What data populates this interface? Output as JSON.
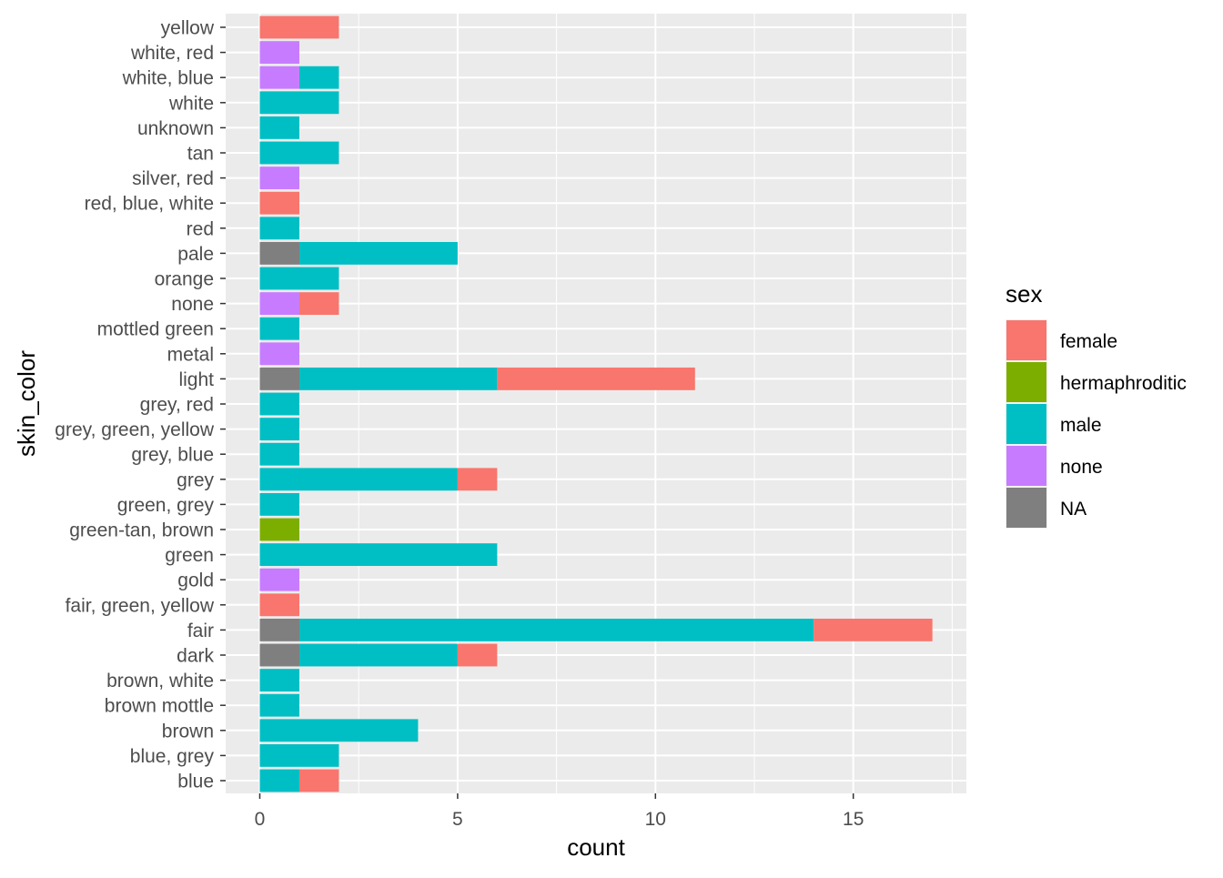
{
  "chart_data": {
    "type": "bar",
    "orientation": "horizontal",
    "stacked": true,
    "xlabel": "count",
    "ylabel": "skin_color",
    "xlim": [
      0,
      17.5
    ],
    "x_ticks": [
      0,
      5,
      10,
      15
    ],
    "grid": true,
    "legend": {
      "title": "sex",
      "position": "right",
      "entries": [
        "female",
        "hermaphroditic",
        "male",
        "none",
        "NA"
      ]
    },
    "colors": {
      "female": "#F8766D",
      "hermaphroditic": "#7CAE00",
      "male": "#00BFC4",
      "none": "#C77CFF",
      "NA": "#7F7F7F",
      "panel": "#EBEBEB",
      "grid": "#FFFFFF"
    },
    "stack_order": [
      "NA",
      "none",
      "male",
      "hermaphroditic",
      "female"
    ],
    "categories": [
      "blue",
      "blue, grey",
      "brown",
      "brown mottle",
      "brown, white",
      "dark",
      "fair",
      "fair, green, yellow",
      "gold",
      "green",
      "green-tan, brown",
      "green, grey",
      "grey",
      "grey, blue",
      "grey, green, yellow",
      "grey, red",
      "light",
      "metal",
      "mottled green",
      "none",
      "orange",
      "pale",
      "red",
      "red, blue, white",
      "silver, red",
      "tan",
      "unknown",
      "white",
      "white, blue",
      "white, red",
      "yellow"
    ],
    "series": [
      {
        "name": "female",
        "values": [
          1,
          0,
          0,
          0,
          0,
          1,
          3,
          1,
          0,
          0,
          0,
          0,
          1,
          0,
          0,
          0,
          5,
          0,
          0,
          1,
          0,
          0,
          0,
          1,
          0,
          0,
          0,
          0,
          0,
          0,
          2
        ]
      },
      {
        "name": "hermaphroditic",
        "values": [
          0,
          0,
          0,
          0,
          0,
          0,
          0,
          0,
          0,
          0,
          1,
          0,
          0,
          0,
          0,
          0,
          0,
          0,
          0,
          0,
          0,
          0,
          0,
          0,
          0,
          0,
          0,
          0,
          0,
          0,
          0
        ]
      },
      {
        "name": "male",
        "values": [
          1,
          2,
          4,
          1,
          1,
          4,
          13,
          0,
          0,
          6,
          0,
          1,
          5,
          1,
          1,
          1,
          5,
          0,
          1,
          0,
          2,
          4,
          1,
          0,
          0,
          2,
          1,
          2,
          1,
          0,
          0
        ]
      },
      {
        "name": "none",
        "values": [
          0,
          0,
          0,
          0,
          0,
          0,
          0,
          0,
          1,
          0,
          0,
          0,
          0,
          0,
          0,
          0,
          0,
          1,
          0,
          1,
          0,
          0,
          0,
          0,
          1,
          0,
          0,
          0,
          1,
          1,
          0
        ]
      },
      {
        "name": "NA",
        "values": [
          0,
          0,
          0,
          0,
          0,
          1,
          1,
          0,
          0,
          0,
          0,
          0,
          0,
          0,
          0,
          0,
          1,
          0,
          0,
          0,
          0,
          1,
          0,
          0,
          0,
          0,
          0,
          0,
          0,
          0,
          0
        ]
      }
    ]
  }
}
